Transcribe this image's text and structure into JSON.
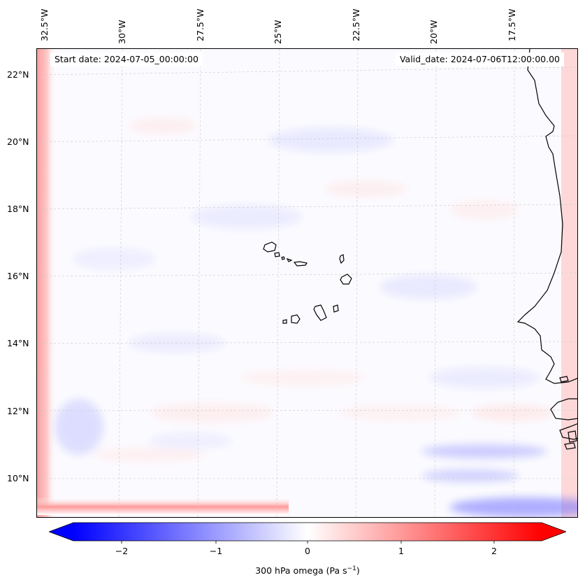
{
  "header": {
    "start_date": "Start date: 2024-07-05_00:00:00",
    "valid_date": "Valid_date: 2024-07-06T12:00:00.00"
  },
  "axes": {
    "longitude_labels": [
      "32.5°W",
      "30°W",
      "27.5°W",
      "25°W",
      "22.5°W",
      "20°W",
      "17.5°W"
    ],
    "latitude_labels": [
      "22°N",
      "20°N",
      "18°N",
      "16°N",
      "14°N",
      "12°N",
      "10°N"
    ]
  },
  "colorbar": {
    "label": "300 hPa omega (Pa s",
    "label_sup": "−1",
    "label_close": ")",
    "ticks": [
      "−2",
      "−1",
      "0",
      "1",
      "2"
    ],
    "min": -2.5,
    "max": 2.5,
    "colors": {
      "negative": "#0000ff",
      "neutral": "#ffffff",
      "positive": "#ff0000"
    }
  },
  "map": {
    "gridlines": "dashed",
    "coastline_color": "#000000"
  }
}
